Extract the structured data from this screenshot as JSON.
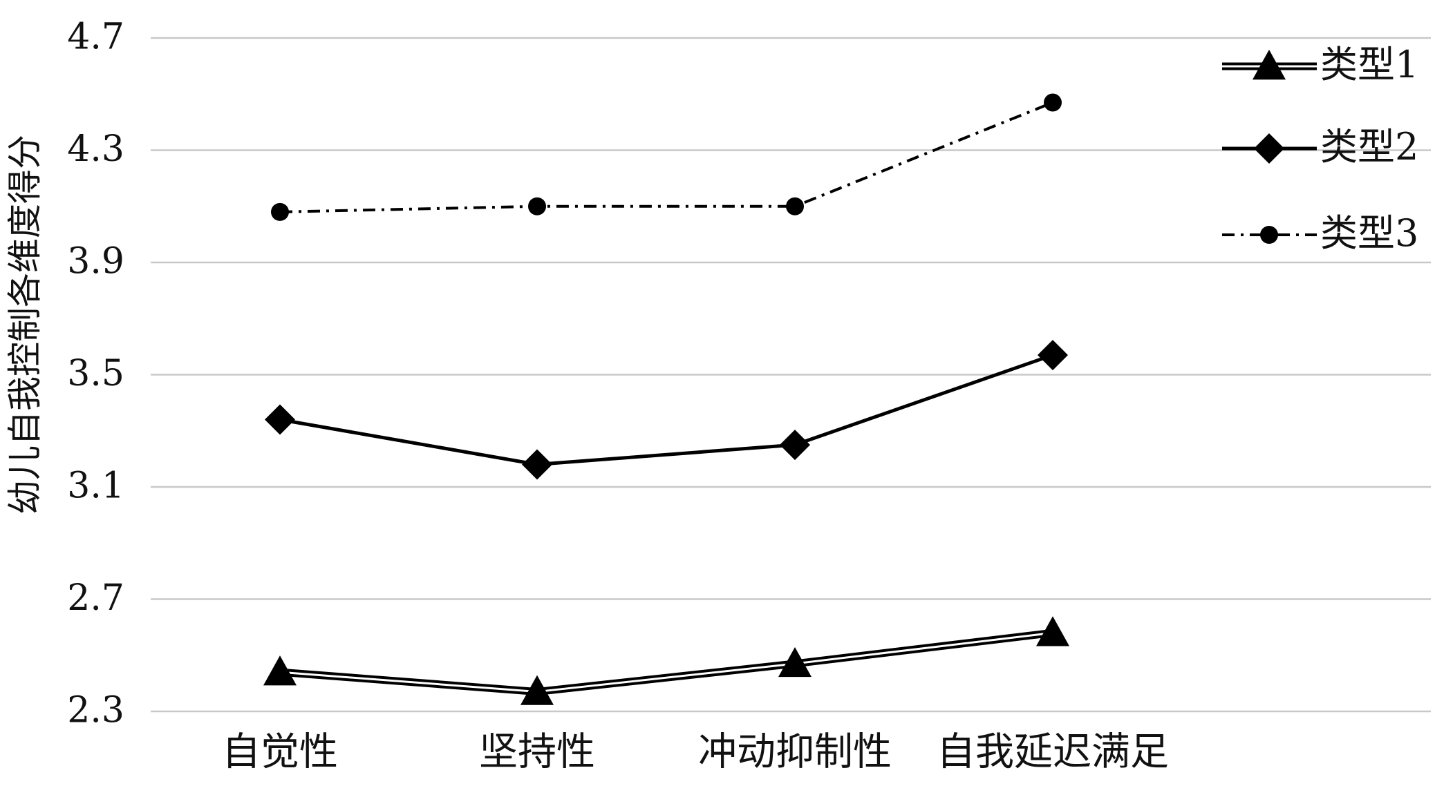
{
  "chart_data": {
    "type": "line",
    "title": "",
    "xlabel": "",
    "ylabel": "幼儿自我控制各维度得分",
    "categories": [
      "自觉性",
      "坚持性",
      "冲动抑制性",
      "自我延迟满足"
    ],
    "ylim": [
      2.3,
      4.7
    ],
    "yticks": [
      "2.3",
      "2.7",
      "3.1",
      "3.5",
      "3.9",
      "4.3",
      "4.7"
    ],
    "grid": true,
    "legend_position": "top-right",
    "series": [
      {
        "name": "类型1",
        "values": [
          2.44,
          2.37,
          2.47,
          2.58
        ],
        "marker": "triangle",
        "line_style": "double",
        "color": "#000000"
      },
      {
        "name": "类型2",
        "values": [
          3.34,
          3.18,
          3.25,
          3.57
        ],
        "marker": "diamond",
        "line_style": "solid",
        "color": "#000000"
      },
      {
        "name": "类型3",
        "values": [
          4.08,
          4.1,
          4.1,
          4.47
        ],
        "marker": "circle",
        "line_style": "dash-dot",
        "color": "#000000"
      }
    ]
  }
}
